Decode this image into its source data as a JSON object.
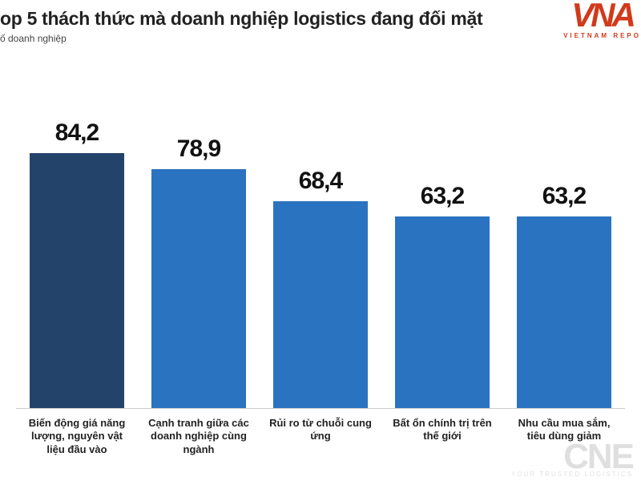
{
  "header": {
    "title": "op 5 thách thức mà doanh nghiệp logistics đang đối mặt",
    "subtitle": " ố doanh nghiệp"
  },
  "logo": {
    "mark": "VNA",
    "sub": "VIETNAM REPO"
  },
  "watermark": {
    "main": "CNE",
    "sub": "YOUR TRUSTED LOGISTICS"
  },
  "chart": {
    "type": "bar",
    "y_max": 100,
    "value_fontsize": 30,
    "label_fontsize": 13,
    "background_color": "#ffffff",
    "axis_color": "#cccccc",
    "bar_width_pct": 78,
    "categories": [
      "Biến động giá năng lượng, nguyên vật liệu đầu vào",
      "Cạnh tranh giữa các doanh nghiệp cùng ngành",
      "Rủi ro từ chuỗi cung ứng",
      "Bất ổn chính trị trên thế giới",
      "Nhu cầu mua sắm, tiêu dùng giảm"
    ],
    "values": [
      84.2,
      78.9,
      68.4,
      63.2,
      63.2
    ],
    "value_labels": [
      "84,2",
      "78,9",
      "68,4",
      "63,2",
      "63,2"
    ],
    "bar_colors": [
      "#23436a",
      "#2a73c0",
      "#2a73c0",
      "#2a73c0",
      "#2a73c0"
    ]
  }
}
